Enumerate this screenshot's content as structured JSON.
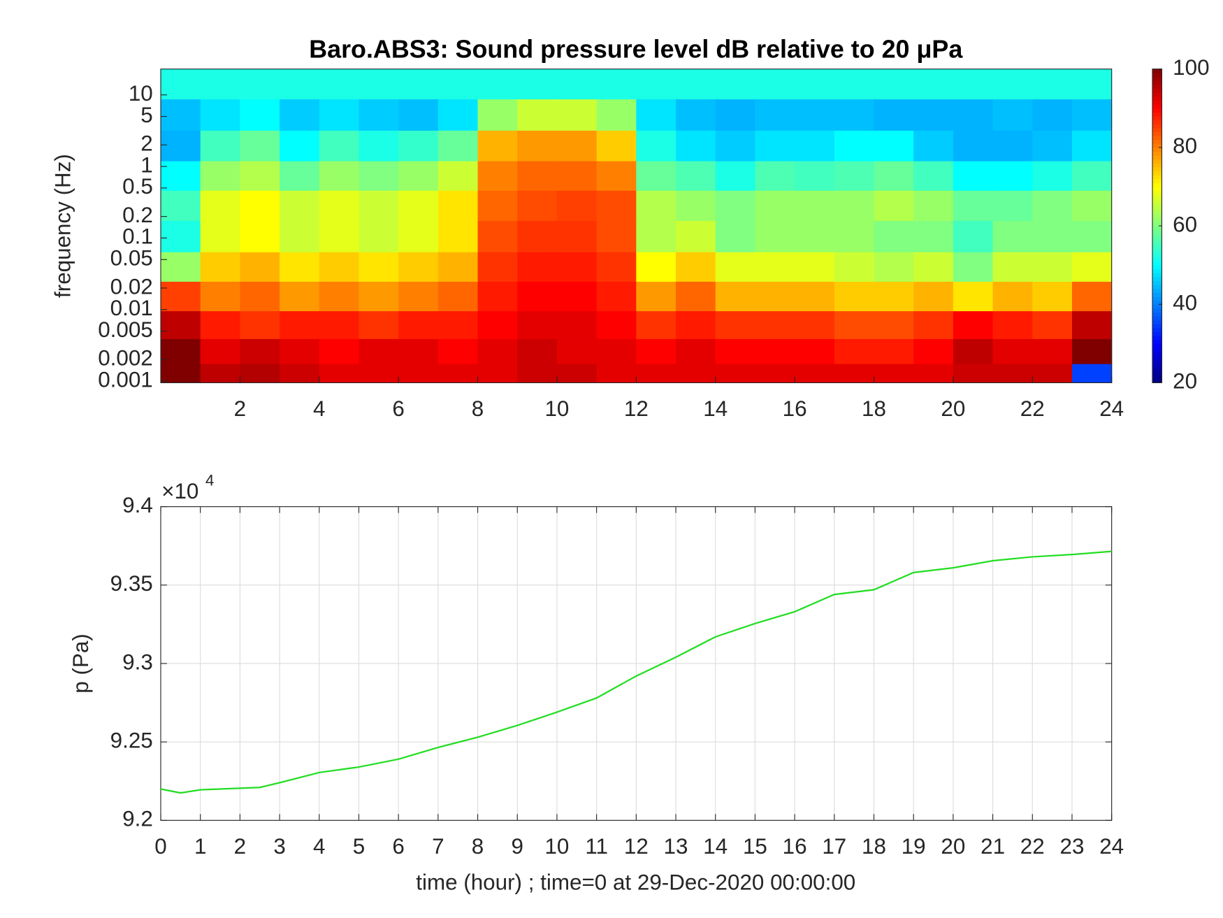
{
  "chart_data": [
    {
      "type": "heatmap",
      "title": "Baro.ABS3: Sound pressure level dB relative to 20 μPa",
      "y_label": "frequency (Hz)",
      "log_y": true,
      "times": [
        0.5,
        1.5,
        2.5,
        3.5,
        4.5,
        5.5,
        6.5,
        7.5,
        8.5,
        9.5,
        10.5,
        11.5,
        12.5,
        13.5,
        14.5,
        15.5,
        16.5,
        17.5,
        18.5,
        19.5,
        20.5,
        21.5,
        22.5,
        23.5
      ],
      "frequencies": [
        15,
        5,
        2,
        0.7,
        0.3,
        0.1,
        0.04,
        0.015,
        0.006,
        0.0025,
        0.0012
      ],
      "values": [
        [
          52,
          52,
          52,
          52,
          52,
          52,
          52,
          52,
          52,
          52,
          52,
          52,
          52,
          52,
          52,
          52,
          52,
          52,
          52,
          52,
          52,
          52,
          52,
          52
        ],
        [
          45,
          48,
          50,
          46,
          48,
          46,
          45,
          48,
          62,
          66,
          66,
          62,
          48,
          45,
          44,
          45,
          45,
          45,
          44,
          44,
          44,
          45,
          44,
          45
        ],
        [
          44,
          55,
          58,
          50,
          55,
          52,
          54,
          58,
          76,
          78,
          78,
          74,
          52,
          48,
          46,
          48,
          48,
          50,
          50,
          46,
          44,
          44,
          45,
          48
        ],
        [
          50,
          62,
          64,
          58,
          62,
          60,
          62,
          66,
          80,
          82,
          82,
          80,
          58,
          56,
          52,
          56,
          55,
          56,
          58,
          55,
          50,
          50,
          52,
          55
        ],
        [
          55,
          68,
          70,
          66,
          68,
          66,
          68,
          72,
          82,
          84,
          85,
          84,
          64,
          62,
          60,
          62,
          62,
          62,
          64,
          62,
          58,
          58,
          60,
          62
        ],
        [
          52,
          68,
          70,
          66,
          68,
          66,
          68,
          72,
          84,
          86,
          86,
          84,
          64,
          66,
          60,
          62,
          62,
          62,
          60,
          60,
          55,
          60,
          60,
          60
        ],
        [
          62,
          74,
          76,
          72,
          74,
          72,
          74,
          76,
          86,
          88,
          88,
          86,
          70,
          74,
          68,
          68,
          68,
          66,
          64,
          66,
          60,
          66,
          66,
          68
        ],
        [
          85,
          80,
          82,
          78,
          80,
          78,
          80,
          82,
          88,
          90,
          90,
          88,
          78,
          82,
          76,
          76,
          76,
          74,
          74,
          76,
          72,
          76,
          74,
          82
        ],
        [
          95,
          88,
          86,
          88,
          88,
          86,
          88,
          88,
          90,
          92,
          92,
          90,
          86,
          88,
          86,
          86,
          86,
          84,
          84,
          86,
          90,
          88,
          86,
          95
        ],
        [
          100,
          92,
          94,
          92,
          90,
          92,
          92,
          90,
          92,
          94,
          92,
          92,
          90,
          92,
          90,
          90,
          90,
          88,
          88,
          90,
          95,
          92,
          92,
          100
        ],
        [
          100,
          95,
          96,
          94,
          92,
          92,
          92,
          92,
          92,
          94,
          94,
          92,
          92,
          92,
          92,
          92,
          92,
          92,
          92,
          92,
          94,
          94,
          94,
          35
        ]
      ],
      "colormap": "jet",
      "xlim": [
        0,
        24
      ],
      "xticks": [
        2,
        4,
        6,
        8,
        10,
        12,
        14,
        16,
        18,
        20,
        22,
        24
      ],
      "ylim": [
        0.00095,
        23
      ],
      "yticks": [
        10,
        5,
        2,
        1,
        0.5,
        0.2,
        0.1,
        0.05,
        0.02,
        0.01,
        0.005,
        0.002,
        0.001
      ],
      "clim": [
        20,
        100
      ],
      "cticks": [
        20,
        40,
        60,
        80,
        100
      ]
    },
    {
      "type": "line",
      "x_label": "time (hour) ; time=0 at 29-Dec-2020 00:00:00",
      "y_label": "p (Pa)",
      "exponent_base": "×10",
      "exponent": "4",
      "grid": true,
      "x": [
        0,
        0.5,
        1,
        2,
        2.5,
        3,
        4,
        5,
        6,
        7,
        8,
        9,
        10,
        11,
        12,
        13,
        14,
        15,
        16,
        17,
        18,
        19,
        20,
        21,
        22,
        23,
        24
      ],
      "series": [
        {
          "color": "#22dd22",
          "values": [
            92200,
            92175,
            92195,
            92205,
            92210,
            92240,
            92305,
            92340,
            92390,
            92465,
            92530,
            92605,
            92690,
            92780,
            92920,
            93040,
            93170,
            93255,
            93330,
            93440,
            93470,
            93580,
            93610,
            93655,
            93680,
            93695,
            93715
          ]
        }
      ],
      "xlim": [
        0,
        24
      ],
      "xticks": [
        0,
        1,
        2,
        3,
        4,
        5,
        6,
        7,
        8,
        9,
        10,
        11,
        12,
        13,
        14,
        15,
        16,
        17,
        18,
        19,
        20,
        21,
        22,
        23,
        24
      ],
      "ylim": [
        92000,
        94000
      ],
      "yticks": [
        {
          "value": 92000,
          "label": "9.2"
        },
        {
          "value": 92500,
          "label": "9.25"
        },
        {
          "value": 93000,
          "label": "9.3"
        },
        {
          "value": 93500,
          "label": "9.35"
        },
        {
          "value": 94000,
          "label": "9.4"
        }
      ]
    }
  ]
}
